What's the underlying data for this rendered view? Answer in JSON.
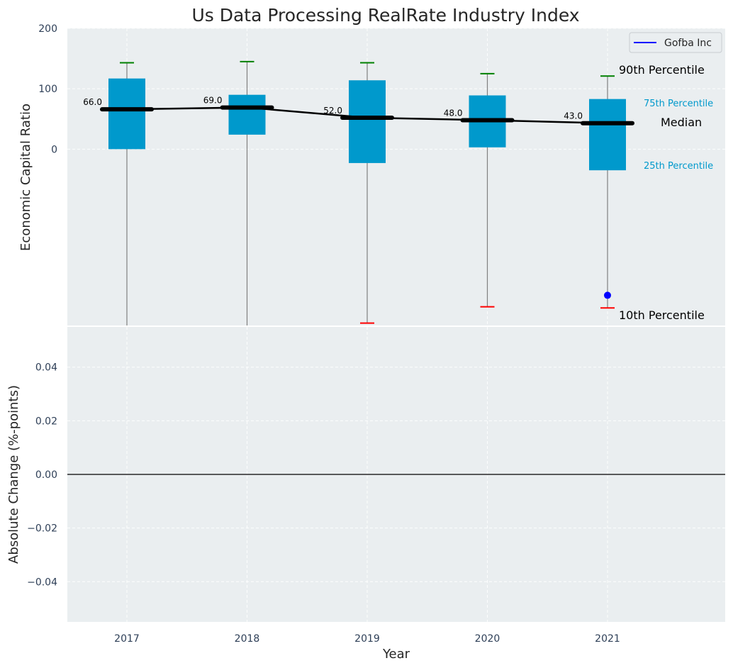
{
  "chart_data": [
    {
      "type": "box",
      "title": "Us Data Processing RealRate Industry Index",
      "xlabel": "",
      "ylabel": "Economic Capital Ratio",
      "categories": [
        "2017",
        "2018",
        "2019",
        "2020",
        "2021"
      ],
      "ylim": [
        -292,
        200
      ],
      "yticks": [
        0,
        100,
        200
      ],
      "grid": true,
      "boxes": [
        {
          "year": "2017",
          "p10": -292,
          "q1": 0,
          "median": 66.0,
          "q3": 117,
          "p90": 143
        },
        {
          "year": "2018",
          "p10": -292,
          "q1": 24,
          "median": 69.0,
          "q3": 90,
          "p90": 145
        },
        {
          "year": "2019",
          "p10": -288,
          "q1": -23,
          "median": 52.0,
          "q3": 114,
          "p90": 143
        },
        {
          "year": "2020",
          "p10": -261,
          "q1": 3,
          "median": 48.0,
          "q3": 89,
          "p90": 125
        },
        {
          "year": "2021",
          "p10": -263,
          "q1": -35,
          "median": 43.0,
          "q3": 83,
          "p90": 121
        }
      ],
      "median_labels": [
        "66.0",
        "69.0",
        "52.0",
        "48.0",
        "43.0"
      ],
      "series": [
        {
          "name": "Gofba Inc",
          "points": [
            {
              "x": "2021",
              "y": -242
            }
          ]
        }
      ],
      "legend": {
        "position": "top-right",
        "entries": [
          "Gofba Inc"
        ]
      },
      "annotations": {
        "p90": "90th Percentile",
        "q3": "75th Percentile",
        "median": "Median",
        "q1": "25th Percentile",
        "p10": "10th Percentile"
      },
      "colors": {
        "box": "#0099cc",
        "median": "#000000",
        "whisker_top": "#008000",
        "whisker_bottom": "#ff0000",
        "gofba": "#0000ff",
        "panel": "#eaeef0",
        "annotation_quartile": "#0099cc"
      }
    },
    {
      "type": "line",
      "title": "",
      "xlabel": "Year",
      "ylabel": "Absolute Change (%-points)",
      "categories": [
        "2017",
        "2018",
        "2019",
        "2020",
        "2021"
      ],
      "ylim": [
        -0.055,
        0.055
      ],
      "yticks": [
        "−0.04",
        "−0.02",
        "0.00",
        "0.02",
        "0.04"
      ],
      "ytick_values": [
        -0.04,
        -0.02,
        0,
        0.02,
        0.04
      ],
      "zero_line": true,
      "grid": true,
      "series": []
    }
  ]
}
